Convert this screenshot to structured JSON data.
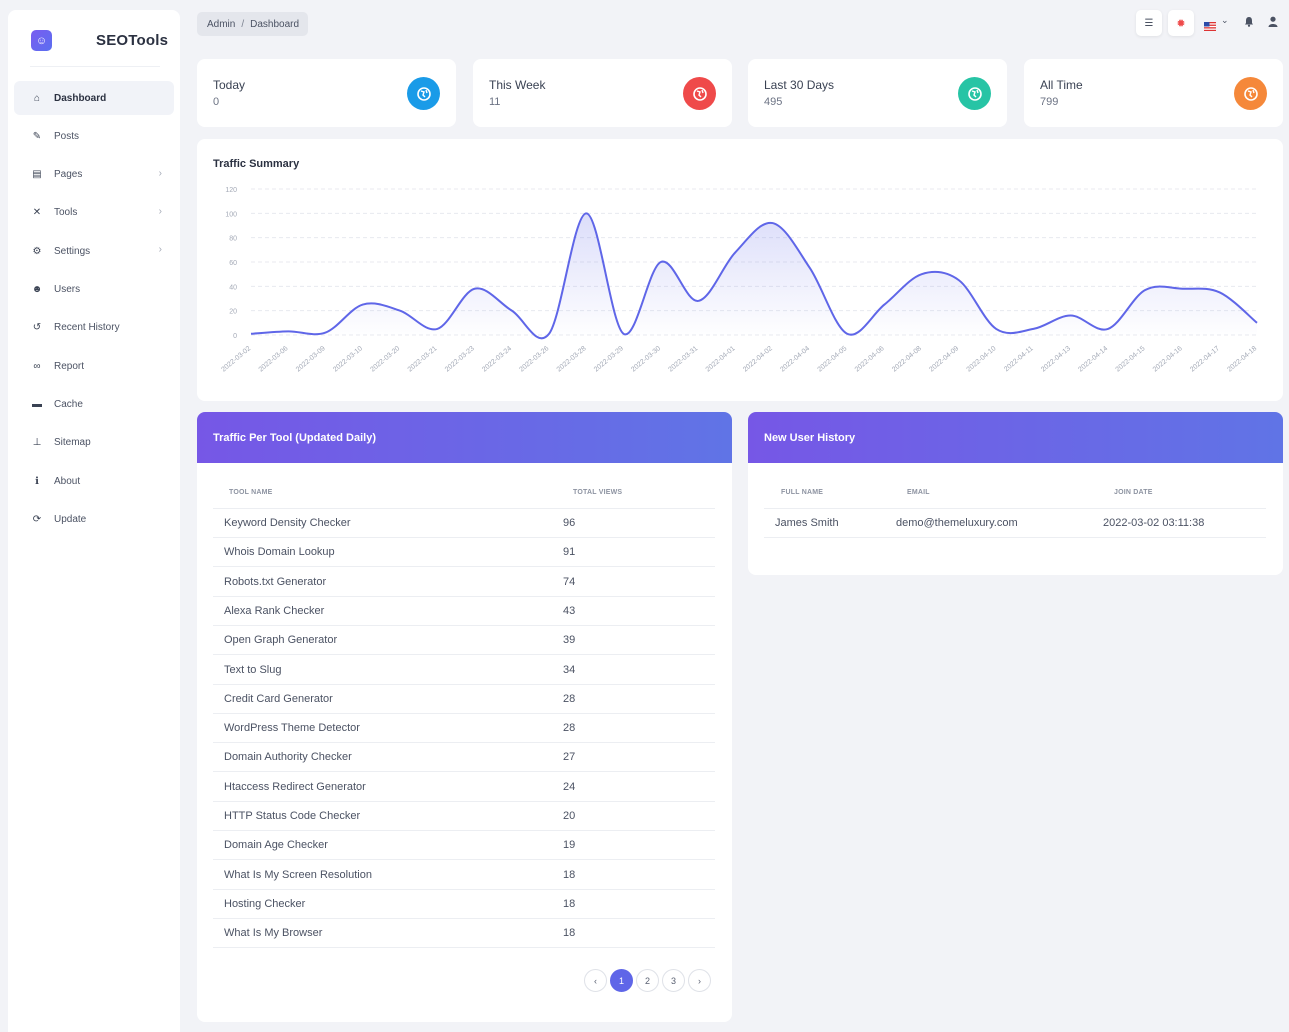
{
  "brand": {
    "name": "SEOTools",
    "logo_icon": "user-badge-icon"
  },
  "sidebar": {
    "items": [
      {
        "label": "Dashboard",
        "icon": "home-icon",
        "glyph": "⌂",
        "active": true,
        "has_children": false
      },
      {
        "label": "Posts",
        "icon": "pencil-icon",
        "glyph": "✎",
        "active": false,
        "has_children": false
      },
      {
        "label": "Pages",
        "icon": "file-icon",
        "glyph": "▤",
        "active": false,
        "has_children": true
      },
      {
        "label": "Tools",
        "icon": "tools-icon",
        "glyph": "✕",
        "active": false,
        "has_children": true
      },
      {
        "label": "Settings",
        "icon": "gears-icon",
        "glyph": "⚙",
        "active": false,
        "has_children": true
      },
      {
        "label": "Users",
        "icon": "users-icon",
        "glyph": "☻",
        "active": false,
        "has_children": false
      },
      {
        "label": "Recent History",
        "icon": "history-icon",
        "glyph": "↺",
        "active": false,
        "has_children": false
      },
      {
        "label": "Report",
        "icon": "link-icon",
        "glyph": "∞",
        "active": false,
        "has_children": false
      },
      {
        "label": "Cache",
        "icon": "archive-icon",
        "glyph": "▬",
        "active": false,
        "has_children": false
      },
      {
        "label": "Sitemap",
        "icon": "sitemap-icon",
        "glyph": "⊥",
        "active": false,
        "has_children": false
      },
      {
        "label": "About",
        "icon": "info-icon",
        "glyph": "ℹ",
        "active": false,
        "has_children": false
      },
      {
        "label": "Update",
        "icon": "sync-icon",
        "glyph": "⟳",
        "active": false,
        "has_children": false
      }
    ]
  },
  "breadcrumb": {
    "root": "Admin",
    "separator": "/",
    "current": "Dashboard"
  },
  "topbar": {
    "buttons": [
      {
        "name": "menu-toggle-button",
        "icon": "align-right-icon",
        "glyph": "☰"
      },
      {
        "name": "theme-button",
        "icon": "gear-red-icon",
        "glyph": "✹"
      }
    ],
    "language_icon": "flag-us-icon",
    "notification_icon": "bell-icon",
    "user_icon": "user-icon"
  },
  "stats": [
    {
      "label": "Today",
      "value": "0",
      "color": "#1a9be8",
      "icon": "globe-icon"
    },
    {
      "label": "This Week",
      "value": "11",
      "color": "#ef4a4a",
      "icon": "globe-icon"
    },
    {
      "label": "Last 30 Days",
      "value": "495",
      "color": "#27c4a5",
      "icon": "globe-icon"
    },
    {
      "label": "All Time",
      "value": "799",
      "color": "#f5883a",
      "icon": "globe-icon"
    }
  ],
  "chart_data": {
    "type": "area",
    "title": "Traffic Summary",
    "xlabel": "",
    "ylabel": "",
    "ylim": [
      0,
      120
    ],
    "yticks": [
      0,
      20,
      40,
      60,
      80,
      100,
      120
    ],
    "grid": true,
    "color": "#5f66e8",
    "categories": [
      "2022-03-02",
      "2022-03-06",
      "2022-03-09",
      "2022-03-10",
      "2022-03-20",
      "2022-03-21",
      "2022-03-23",
      "2022-03-24",
      "2022-03-26",
      "2022-03-28",
      "2022-03-29",
      "2022-03-30",
      "2022-03-31",
      "2022-04-01",
      "2022-04-02",
      "2022-04-04",
      "2022-04-05",
      "2022-04-06",
      "2022-04-08",
      "2022-04-09",
      "2022-04-10",
      "2022-04-11",
      "2022-04-13",
      "2022-04-14",
      "2022-04-15",
      "2022-04-16",
      "2022-04-17",
      "2022-04-18"
    ],
    "values": [
      1,
      3,
      2,
      25,
      20,
      5,
      38,
      20,
      1,
      100,
      1,
      60,
      28,
      68,
      92,
      55,
      1,
      25,
      50,
      45,
      5,
      5,
      16,
      5,
      37,
      38,
      35,
      10
    ]
  },
  "traffic_table": {
    "title": "Traffic Per Tool (Updated Daily)",
    "columns": [
      "TOOL NAME",
      "TOTAL VIEWS"
    ],
    "rows": [
      {
        "tool": "Keyword Density Checker",
        "views": "96"
      },
      {
        "tool": "Whois Domain Lookup",
        "views": "91"
      },
      {
        "tool": "Robots.txt Generator",
        "views": "74"
      },
      {
        "tool": "Alexa Rank Checker",
        "views": "43"
      },
      {
        "tool": "Open Graph Generator",
        "views": "39"
      },
      {
        "tool": "Text to Slug",
        "views": "34"
      },
      {
        "tool": "Credit Card Generator",
        "views": "28"
      },
      {
        "tool": "WordPress Theme Detector",
        "views": "28"
      },
      {
        "tool": "Domain Authority Checker",
        "views": "27"
      },
      {
        "tool": "Htaccess Redirect Generator",
        "views": "24"
      },
      {
        "tool": "HTTP Status Code Checker",
        "views": "20"
      },
      {
        "tool": "Domain Age Checker",
        "views": "19"
      },
      {
        "tool": "What Is My Screen Resolution",
        "views": "18"
      },
      {
        "tool": "Hosting Checker",
        "views": "18"
      },
      {
        "tool": "What Is My Browser",
        "views": "18"
      }
    ],
    "pagination": {
      "prev": "‹",
      "pages": [
        "1",
        "2",
        "3"
      ],
      "current": "1",
      "next": "›"
    }
  },
  "user_table": {
    "title": "New User History",
    "columns": [
      "FULL NAME",
      "EMAIL",
      "JOIN DATE"
    ],
    "rows": [
      {
        "name": "James Smith",
        "email": "demo@themeluxury.com",
        "joined": "2022-03-02 03:11:38"
      }
    ]
  }
}
